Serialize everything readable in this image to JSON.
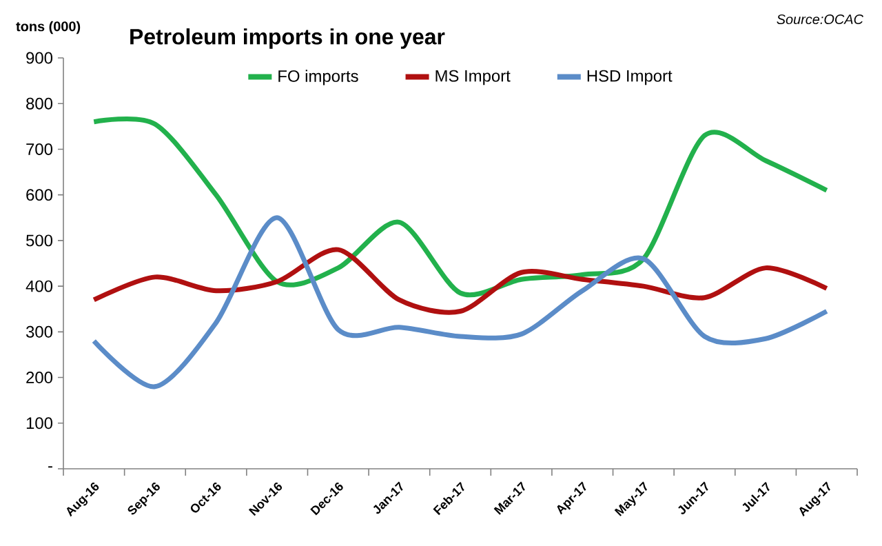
{
  "chart_data": {
    "type": "line",
    "title": "Petroleum imports in one year",
    "ylabel": "tons (000)",
    "annotations": [
      "Source:OCAC"
    ],
    "categories": [
      "Aug-16",
      "Sep-16",
      "Oct-16",
      "Nov-16",
      "Dec-16",
      "Jan-17",
      "Feb-17",
      "Mar-17",
      "Apr-17",
      "May-17",
      "Jun-17",
      "Jul-17",
      "Aug-17"
    ],
    "series": [
      {
        "name": "FO imports",
        "color": "#22b14c",
        "values": [
          760,
          755,
          600,
          410,
          440,
          540,
          385,
          415,
          425,
          460,
          730,
          675,
          610
        ]
      },
      {
        "name": "MS Import",
        "color": "#b01010",
        "values": [
          370,
          420,
          390,
          410,
          480,
          370,
          345,
          430,
          415,
          400,
          375,
          440,
          395
        ]
      },
      {
        "name": "HSD Import",
        "color": "#5b8cc8",
        "values": [
          280,
          180,
          320,
          550,
          305,
          310,
          290,
          295,
          390,
          460,
          290,
          285,
          345
        ]
      }
    ],
    "ylim": [
      0,
      900
    ],
    "yticks": [
      {
        "value": 0,
        "label": "-"
      },
      100,
      200,
      300,
      400,
      500,
      600,
      700,
      800,
      900
    ],
    "legend": "top",
    "grid": false,
    "marker": "none",
    "line_style": "solid"
  }
}
